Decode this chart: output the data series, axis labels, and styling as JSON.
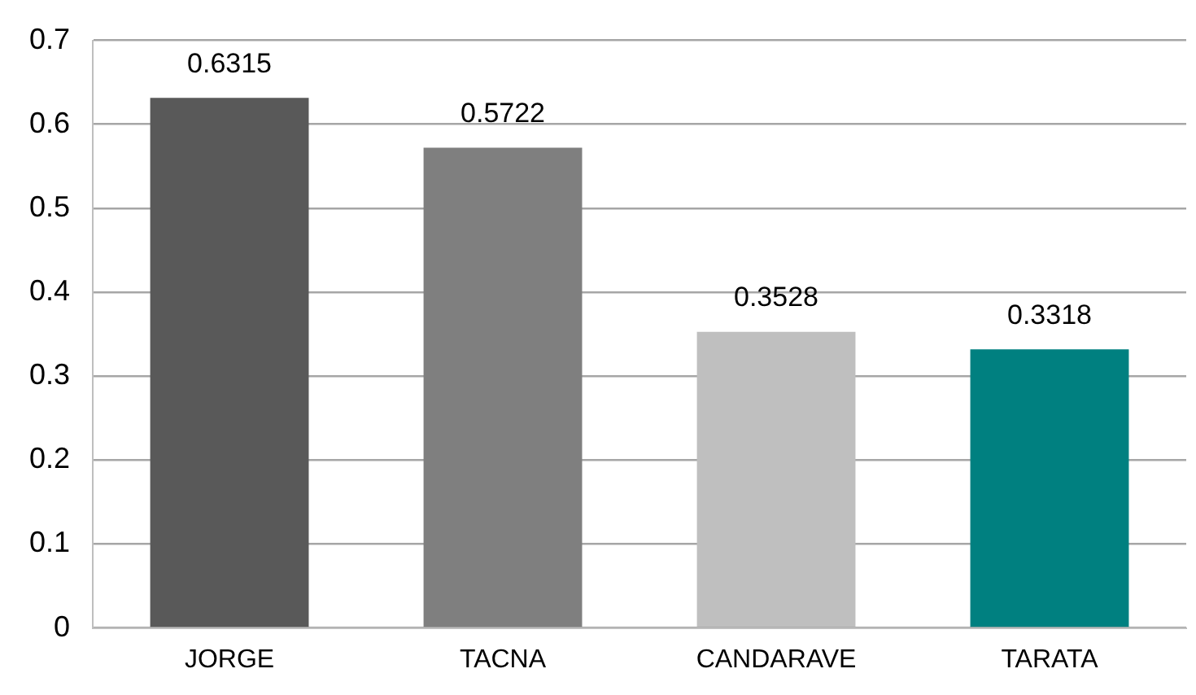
{
  "chart_data": {
    "type": "bar",
    "categories": [
      "JORGE",
      "TACNA",
      "CANDARAVE",
      "TARATA"
    ],
    "values": [
      0.6315,
      0.5722,
      0.3528,
      0.3318
    ],
    "colors": [
      "#595959",
      "#7f7f7f",
      "#bfbfbf",
      "#008080"
    ],
    "ylim": [
      0,
      0.7
    ],
    "yticks": [
      0,
      0.1,
      0.2,
      0.3,
      0.4,
      0.5,
      0.6,
      0.7
    ],
    "grid": "y",
    "data_labels": true,
    "legend": false
  }
}
